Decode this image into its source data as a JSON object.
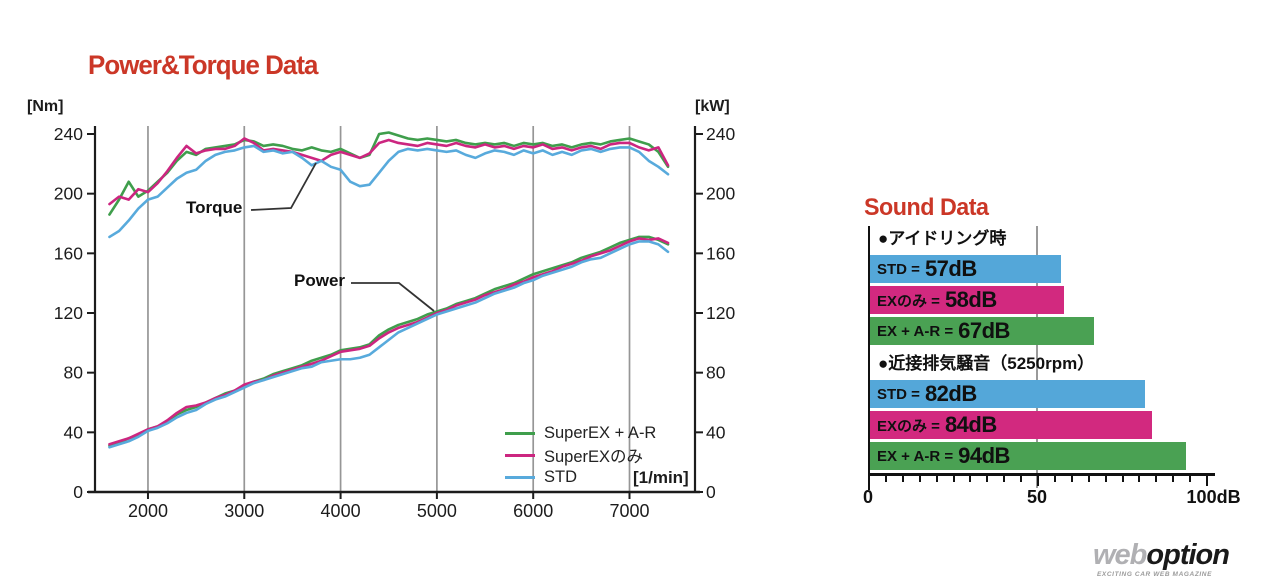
{
  "power_torque": {
    "title": "Power&Torque Data",
    "left_axis_unit": "[Nm]",
    "right_axis_unit": "[kW]",
    "x_axis_unit": "[1/min]",
    "annotations": {
      "torque": "Torque",
      "power": "Power"
    }
  },
  "sound": {
    "title": "Sound Data"
  },
  "logo": {
    "web": "web",
    "option": "option",
    "tagline": "EXCITING CAR WEB MAGAZINE"
  },
  "chart_data": [
    {
      "type": "line",
      "title": "Power&Torque Data",
      "xlabel": "[1/min]",
      "ylabel_left": "[Nm]",
      "ylabel_right": "[kW]",
      "xlim": [
        1450,
        7680
      ],
      "ylim": [
        0,
        240
      ],
      "x_ticks": [
        2000,
        3000,
        4000,
        5000,
        6000,
        7000
      ],
      "y_ticks": [
        0,
        40,
        80,
        120,
        160,
        200,
        240
      ],
      "grid": "vertical",
      "legend_position": "bottom-right-inside",
      "x": [
        1600,
        1700,
        1800,
        1900,
        2000,
        2100,
        2200,
        2300,
        2400,
        2500,
        2600,
        2700,
        2800,
        2900,
        3000,
        3100,
        3200,
        3300,
        3400,
        3500,
        3600,
        3700,
        3800,
        3900,
        4000,
        4100,
        4200,
        4300,
        4400,
        4500,
        4600,
        4700,
        4800,
        4900,
        5000,
        5100,
        5200,
        5300,
        5400,
        5500,
        5600,
        5700,
        5800,
        5900,
        6000,
        6100,
        6200,
        6300,
        6400,
        6500,
        6600,
        6700,
        6800,
        6900,
        7000,
        7100,
        7200,
        7300,
        7400
      ],
      "series": [
        {
          "name": "SuperEX + A-R",
          "quantity": "torque",
          "unit": "Nm",
          "color": "#3f9e4c",
          "values": [
            186,
            196,
            208,
            198,
            202,
            208,
            214,
            222,
            228,
            226,
            230,
            231,
            232,
            233,
            236,
            235,
            232,
            233,
            232,
            230,
            229,
            231,
            229,
            228,
            230,
            227,
            224,
            226,
            240,
            241,
            239,
            237,
            236,
            237,
            236,
            235,
            236,
            234,
            233,
            234,
            233,
            234,
            232,
            234,
            233,
            234,
            232,
            233,
            231,
            233,
            234,
            233,
            235,
            236,
            237,
            235,
            233,
            228,
            218
          ]
        },
        {
          "name": "SuperEXのみ",
          "quantity": "torque",
          "unit": "Nm",
          "color": "#cc2680",
          "values": [
            193,
            198,
            196,
            203,
            201,
            207,
            215,
            224,
            232,
            227,
            229,
            230,
            230,
            232,
            237,
            234,
            229,
            230,
            229,
            228,
            226,
            224,
            222,
            226,
            228,
            226,
            224,
            227,
            234,
            236,
            234,
            233,
            232,
            234,
            233,
            232,
            234,
            232,
            231,
            233,
            231,
            232,
            230,
            232,
            231,
            233,
            230,
            231,
            229,
            231,
            232,
            230,
            233,
            234,
            234,
            231,
            229,
            231,
            219
          ]
        },
        {
          "name": "STD",
          "quantity": "torque",
          "unit": "Nm",
          "color": "#58aadc",
          "values": [
            171,
            175,
            182,
            190,
            196,
            198,
            204,
            210,
            214,
            216,
            222,
            226,
            228,
            229,
            231,
            232,
            228,
            229,
            227,
            228,
            224,
            219,
            222,
            218,
            216,
            208,
            205,
            206,
            214,
            222,
            228,
            230,
            229,
            230,
            229,
            228,
            229,
            226,
            224,
            227,
            229,
            228,
            226,
            229,
            227,
            229,
            226,
            228,
            226,
            229,
            230,
            228,
            230,
            231,
            231,
            228,
            222,
            218,
            213
          ]
        },
        {
          "name": "SuperEX + A-R",
          "quantity": "power",
          "unit": "kW",
          "color": "#3f9e4c",
          "values": [
            31,
            33,
            36,
            38,
            42,
            44,
            47,
            52,
            55,
            57,
            60,
            63,
            66,
            68,
            71,
            74,
            76,
            79,
            81,
            83,
            85,
            88,
            90,
            92,
            95,
            96,
            97,
            99,
            105,
            109,
            112,
            114,
            116,
            119,
            121,
            123,
            126,
            128,
            130,
            133,
            136,
            138,
            140,
            143,
            146,
            148,
            150,
            152,
            154,
            157,
            159,
            161,
            164,
            167,
            169,
            171,
            171,
            169,
            166
          ]
        },
        {
          "name": "SuperEXのみ",
          "quantity": "power",
          "unit": "kW",
          "color": "#cc2680",
          "values": [
            32,
            34,
            36,
            39,
            42,
            44,
            48,
            53,
            57,
            58,
            60,
            63,
            65,
            68,
            72,
            74,
            75,
            78,
            80,
            82,
            84,
            86,
            88,
            91,
            94,
            95,
            96,
            98,
            103,
            107,
            110,
            112,
            114,
            117,
            120,
            122,
            125,
            127,
            129,
            132,
            134,
            136,
            139,
            141,
            144,
            146,
            148,
            151,
            153,
            155,
            158,
            160,
            162,
            165,
            168,
            170,
            169,
            170,
            167
          ]
        },
        {
          "name": "STD",
          "quantity": "power",
          "unit": "kW",
          "color": "#58aadc",
          "values": [
            30,
            32,
            34,
            37,
            41,
            43,
            46,
            50,
            53,
            55,
            59,
            62,
            64,
            67,
            70,
            73,
            75,
            77,
            79,
            81,
            83,
            84,
            87,
            88,
            89,
            89,
            90,
            92,
            97,
            102,
            107,
            110,
            113,
            116,
            119,
            121,
            123,
            125,
            127,
            130,
            133,
            135,
            137,
            140,
            142,
            145,
            147,
            149,
            151,
            154,
            156,
            157,
            160,
            163,
            166,
            168,
            168,
            166,
            161
          ]
        }
      ]
    },
    {
      "type": "bar",
      "title": "Sound Data",
      "orientation": "horizontal",
      "xlim": [
        0,
        102
      ],
      "unit": "dB",
      "minor_tick_step": 5,
      "x_ticks": [
        0,
        50,
        100
      ],
      "x_tick_labels": [
        "0",
        "50",
        "100dB"
      ],
      "groups": [
        {
          "heading": "●アイドリング時",
          "bars": [
            {
              "label": "STD",
              "value": 57,
              "display": "57dB",
              "color": "#54a7d9"
            },
            {
              "label": "EXのみ",
              "value": 58,
              "display": "58dB",
              "color": "#d2297f"
            },
            {
              "label": "EX + A-R",
              "value": 67,
              "display": "67dB",
              "color": "#4aa153"
            }
          ]
        },
        {
          "heading": "●近接排気騒音（5250rpm）",
          "bars": [
            {
              "label": "STD",
              "value": 82,
              "display": "82dB",
              "color": "#54a7d9"
            },
            {
              "label": "EXのみ",
              "value": 84,
              "display": "84dB",
              "color": "#d2297f"
            },
            {
              "label": "EX + A-R",
              "value": 94,
              "display": "94dB",
              "color": "#4aa153"
            }
          ]
        }
      ]
    }
  ]
}
